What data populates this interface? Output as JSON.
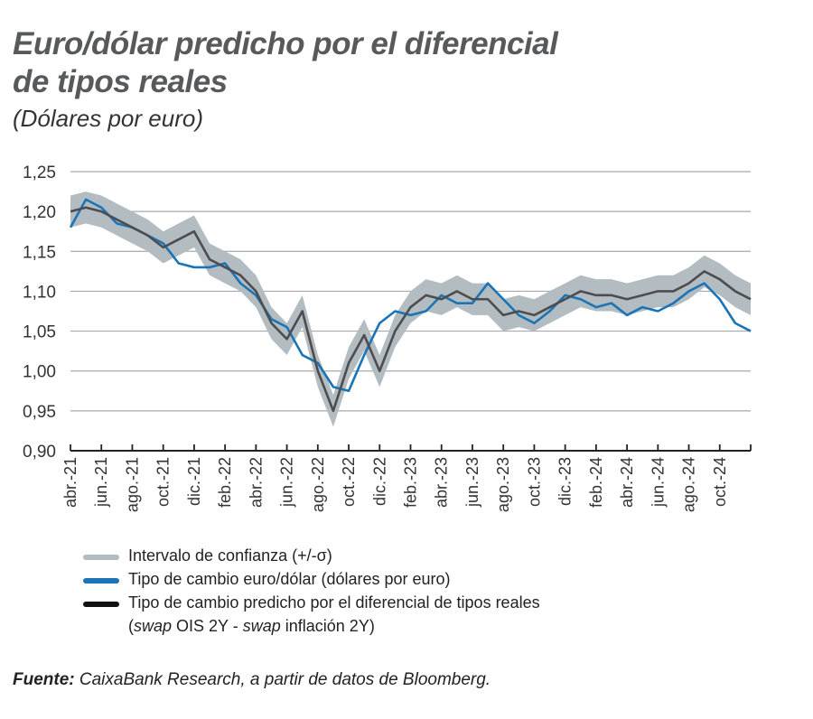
{
  "title_line1": "Euro/dólar predicho por el diferencial",
  "title_line2": "de tipos reales",
  "subtitle": "(Dólares por euro)",
  "chart_data": {
    "type": "line",
    "title": "Euro/dólar predicho por el diferencial de tipos reales",
    "ylabel": "(Dólares por euro)",
    "ylim": [
      0.9,
      1.25
    ],
    "yticks": [
      "1,25",
      "1,20",
      "1,15",
      "1,10",
      "1,05",
      "1,00",
      "0,95",
      "0,90"
    ],
    "ytick_values": [
      1.25,
      1.2,
      1.15,
      1.1,
      1.05,
      1.0,
      0.95,
      0.9
    ],
    "xtick_labels": [
      "abr.-21",
      "jun.-21",
      "ago.-21",
      "oct.-21",
      "dic.-21",
      "feb.-22",
      "abr.-22",
      "jun.-22",
      "ago.-22",
      "oct.-22",
      "dic.-22",
      "feb.-23",
      "abr.-23",
      "jun.-23",
      "ago.-23",
      "oct.-23",
      "dic.-23",
      "feb.-24",
      "abr.-24",
      "jun.-24",
      "ago.-24",
      "oct.-24"
    ],
    "x": [
      "2021-04",
      "2021-05",
      "2021-06",
      "2021-07",
      "2021-08",
      "2021-09",
      "2021-10",
      "2021-11",
      "2021-12",
      "2022-01",
      "2022-02",
      "2022-03",
      "2022-04",
      "2022-05",
      "2022-06",
      "2022-07",
      "2022-08",
      "2022-09",
      "2022-10",
      "2022-11",
      "2022-12",
      "2023-01",
      "2023-02",
      "2023-03",
      "2023-04",
      "2023-05",
      "2023-06",
      "2023-07",
      "2023-08",
      "2023-09",
      "2023-10",
      "2023-11",
      "2023-12",
      "2024-01",
      "2024-02",
      "2024-03",
      "2024-04",
      "2024-05",
      "2024-06",
      "2024-07",
      "2024-08",
      "2024-09",
      "2024-10",
      "2024-11",
      "2024-12"
    ],
    "grid": true,
    "legend_position": "bottom",
    "series": [
      {
        "name": "Intervalo de confianza (+/-σ)",
        "type": "band",
        "color": "#b3bcc0",
        "sigma": 0.02
      },
      {
        "name": "Tipo de cambio euro/dólar (dólares por euro)",
        "color": "#1a75b8",
        "values": [
          1.18,
          1.215,
          1.205,
          1.185,
          1.18,
          1.17,
          1.16,
          1.135,
          1.13,
          1.13,
          1.135,
          1.11,
          1.095,
          1.065,
          1.055,
          1.02,
          1.01,
          0.98,
          0.975,
          1.02,
          1.06,
          1.075,
          1.07,
          1.075,
          1.095,
          1.085,
          1.085,
          1.11,
          1.09,
          1.07,
          1.06,
          1.075,
          1.095,
          1.09,
          1.08,
          1.085,
          1.07,
          1.08,
          1.075,
          1.085,
          1.1,
          1.11,
          1.09,
          1.06,
          1.05
        ]
      },
      {
        "name": "Tipo de cambio predicho por el diferencial de tipos reales",
        "color": "#4d4d4f",
        "values": [
          1.2,
          1.205,
          1.2,
          1.19,
          1.18,
          1.17,
          1.155,
          1.165,
          1.175,
          1.14,
          1.13,
          1.12,
          1.1,
          1.06,
          1.04,
          1.075,
          1.0,
          0.95,
          1.01,
          1.045,
          1.0,
          1.05,
          1.08,
          1.095,
          1.09,
          1.1,
          1.09,
          1.09,
          1.07,
          1.075,
          1.07,
          1.08,
          1.09,
          1.1,
          1.095,
          1.095,
          1.09,
          1.095,
          1.1,
          1.1,
          1.11,
          1.125,
          1.115,
          1.1,
          1.09
        ]
      }
    ]
  },
  "legend": {
    "band": "Intervalo de confianza (+/-σ)",
    "actual": "Tipo de cambio euro/dólar (dólares por euro)",
    "predicted": "Tipo de cambio predicho por el diferencial de tipos reales",
    "predicted_sub_1": "swap",
    "predicted_sub_2": " OIS 2Y - ",
    "predicted_sub_3": "swap",
    "predicted_sub_4": " inflación 2Y)"
  },
  "source_label": "Fuente:",
  "source_text": " CaixaBank Research, a partir de datos de Bloomberg."
}
